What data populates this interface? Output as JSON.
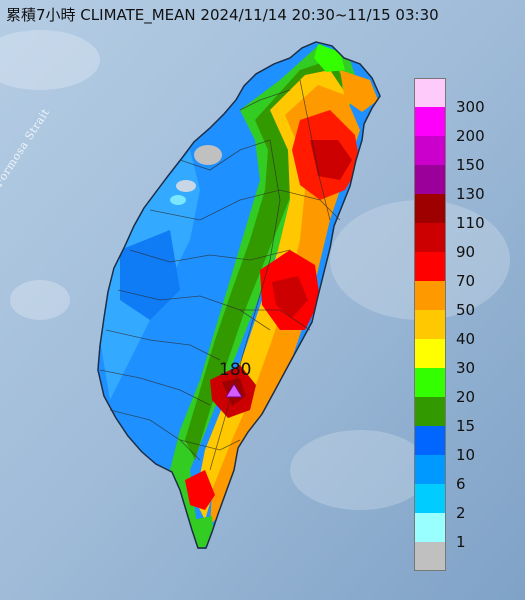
{
  "header": {
    "title": "累積7小時 CLIMATE_MEAN 2024/11/14 20:30~11/15 03:30"
  },
  "map": {
    "water_label": "Formosa Strait",
    "peak_value": "180",
    "peak_marker_color": "#d65cff"
  },
  "legend": {
    "items": [
      {
        "label": "300",
        "color": "#fdcaf9"
      },
      {
        "label": "200",
        "color": "#fc00fc"
      },
      {
        "label": "150",
        "color": "#cc00cc"
      },
      {
        "label": "130",
        "color": "#9b009b"
      },
      {
        "label": "110",
        "color": "#9e0000"
      },
      {
        "label": "90",
        "color": "#cc0000"
      },
      {
        "label": "70",
        "color": "#fe0000"
      },
      {
        "label": "50",
        "color": "#ff9900"
      },
      {
        "label": "40",
        "color": "#ffc800"
      },
      {
        "label": "30",
        "color": "#ffff00"
      },
      {
        "label": "20",
        "color": "#33ff00"
      },
      {
        "label": "15",
        "color": "#339900"
      },
      {
        "label": "10",
        "color": "#0066ff"
      },
      {
        "label": "6",
        "color": "#0099ff"
      },
      {
        "label": "2",
        "color": "#00ccff"
      },
      {
        "label": "1",
        "color": "#99ffff"
      },
      {
        "label": "",
        "color": "#c0c0c0"
      }
    ]
  }
}
